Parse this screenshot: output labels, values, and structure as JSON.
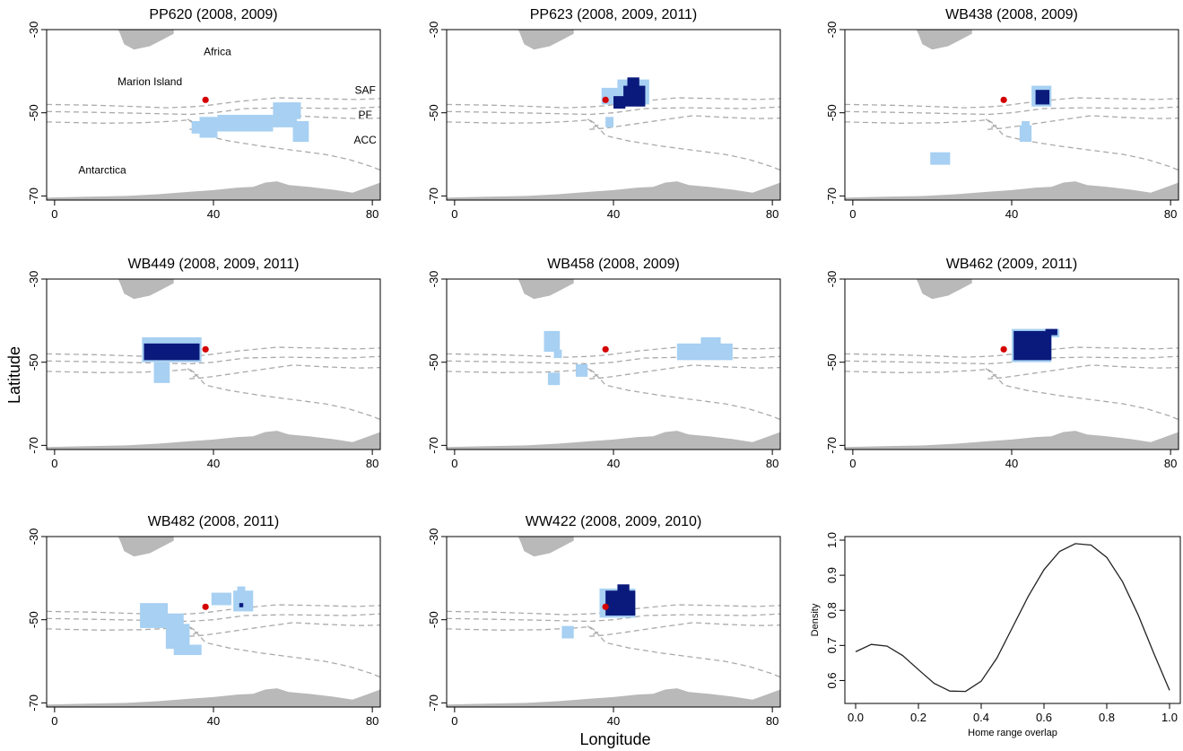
{
  "figure": {
    "x_axis_title": "Longitude",
    "y_axis_title": "Latitude"
  },
  "map_axes": {
    "x_range": [
      -2,
      82
    ],
    "y_range": [
      -71,
      -30
    ],
    "x_ticks": [
      0,
      40,
      80
    ],
    "y_ticks": [
      -30,
      -50,
      -70
    ]
  },
  "annotations": {
    "africa": "Africa",
    "marion": "Marion Island",
    "antarctica": "Antarctica",
    "saf": "SAF",
    "pf": "PF",
    "acc": "ACC"
  },
  "colors": {
    "light_range": "#a7d0f2",
    "core_range": "#0a1a7c",
    "land": "#b9b9b9",
    "fronts": "#aaaaaa",
    "marion_island": "#d40000",
    "density_line": "#222222"
  },
  "chart_data": [
    {
      "type": "heatmap",
      "title": "PP620 (2008, 2009)",
      "marion_island": [
        38,
        -46.9
      ],
      "light": [
        [
          36.5,
          -56,
          4.5,
          5
        ],
        [
          34.5,
          -55,
          2.5,
          3
        ],
        [
          41,
          -54.5,
          14,
          4
        ],
        [
          55,
          -53.5,
          6,
          6
        ],
        [
          57,
          -51.5,
          5,
          4
        ],
        [
          60,
          -57,
          4,
          5
        ]
      ],
      "dark": []
    },
    {
      "type": "heatmap",
      "title": "PP623 (2008, 2009, 2011)",
      "marion_island": [
        38,
        -46.9
      ],
      "light": [
        [
          41,
          -48,
          8,
          6
        ],
        [
          37,
          -48,
          4,
          4
        ],
        [
          38,
          -53.5,
          2,
          2.5
        ]
      ],
      "dark": [
        [
          42.5,
          -48.5,
          5.5,
          5
        ],
        [
          43.5,
          -44.5,
          3,
          3
        ],
        [
          40,
          -49,
          3,
          3
        ]
      ]
    },
    {
      "type": "heatmap",
      "title": "WB438 (2008, 2009)",
      "marion_island": [
        38,
        -46.9
      ],
      "light": [
        [
          45,
          -48.5,
          5,
          5
        ],
        [
          42,
          -57,
          3,
          4
        ],
        [
          19.5,
          -62.5,
          5,
          3
        ],
        [
          42.5,
          -54,
          2,
          2
        ]
      ],
      "dark": [
        [
          46,
          -48,
          3.5,
          3.5
        ]
      ]
    },
    {
      "type": "heatmap",
      "title": "WB449 (2008, 2009, 2011)",
      "marion_island": [
        38,
        -46.9
      ],
      "light": [
        [
          22,
          -50,
          15,
          6
        ],
        [
          25,
          -55,
          4,
          5
        ]
      ],
      "dark": [
        [
          22.5,
          -49.5,
          14,
          4
        ]
      ]
    },
    {
      "type": "heatmap",
      "title": "WB458 (2008, 2009)",
      "marion_island": [
        38,
        -46.9
      ],
      "light": [
        [
          22.5,
          -47.5,
          4,
          5
        ],
        [
          25,
          -49,
          2,
          2
        ],
        [
          23.5,
          -55.5,
          3,
          3
        ],
        [
          30.5,
          -53.5,
          3,
          3
        ],
        [
          56,
          -49.5,
          14,
          4
        ],
        [
          62,
          -46,
          5,
          2
        ]
      ],
      "dark": []
    },
    {
      "type": "heatmap",
      "title": "WB462 (2009, 2011)",
      "marion_island": [
        38,
        -46.9
      ],
      "light": [
        [
          40,
          -50,
          10,
          8
        ],
        [
          48,
          -44,
          4,
          2
        ]
      ],
      "dark": [
        [
          40.5,
          -49.5,
          9.5,
          7
        ],
        [
          48.5,
          -43.5,
          3,
          1.5
        ]
      ]
    },
    {
      "type": "heatmap",
      "title": "WB482 (2008, 2011)",
      "marion_island": [
        38,
        -46.9
      ],
      "light": [
        [
          21.5,
          -52,
          7,
          6
        ],
        [
          25.5,
          -51.5,
          7,
          3
        ],
        [
          28,
          -57,
          6,
          6
        ],
        [
          30,
          -58.5,
          7,
          2.5
        ],
        [
          39.5,
          -46.5,
          5,
          3
        ],
        [
          42.5,
          -46,
          2,
          2
        ],
        [
          45,
          -48,
          5,
          5
        ],
        [
          46,
          -44,
          2,
          2
        ]
      ],
      "dark": [
        [
          46.5,
          -47,
          1,
          1
        ]
      ]
    },
    {
      "type": "heatmap",
      "title": "WW422 (2008, 2009, 2010)",
      "marion_island": [
        38,
        -46.9
      ],
      "light": [
        [
          36.5,
          -49.5,
          9,
          7
        ],
        [
          27,
          -54.5,
          3,
          3
        ]
      ],
      "dark": [
        [
          38,
          -49,
          7.5,
          6
        ],
        [
          41,
          -43.5,
          3,
          2
        ]
      ]
    },
    {
      "type": "line",
      "xlabel": "Home range overlap",
      "ylabel": "Density",
      "xlim": [
        0,
        1
      ],
      "ylim": [
        0.55,
        1.0
      ],
      "x_ticks": [
        0.0,
        0.2,
        0.4,
        0.6,
        0.8,
        1.0
      ],
      "y_ticks": [
        0.6,
        0.7,
        0.8,
        0.9,
        1.0
      ],
      "x": [
        0.0,
        0.05,
        0.1,
        0.15,
        0.2,
        0.25,
        0.3,
        0.35,
        0.4,
        0.45,
        0.5,
        0.55,
        0.6,
        0.65,
        0.7,
        0.75,
        0.8,
        0.85,
        0.9,
        0.95,
        1.0
      ],
      "y": [
        0.682,
        0.703,
        0.698,
        0.671,
        0.631,
        0.592,
        0.57,
        0.569,
        0.598,
        0.664,
        0.752,
        0.84,
        0.916,
        0.968,
        0.99,
        0.986,
        0.951,
        0.882,
        0.787,
        0.677,
        0.572
      ]
    }
  ]
}
